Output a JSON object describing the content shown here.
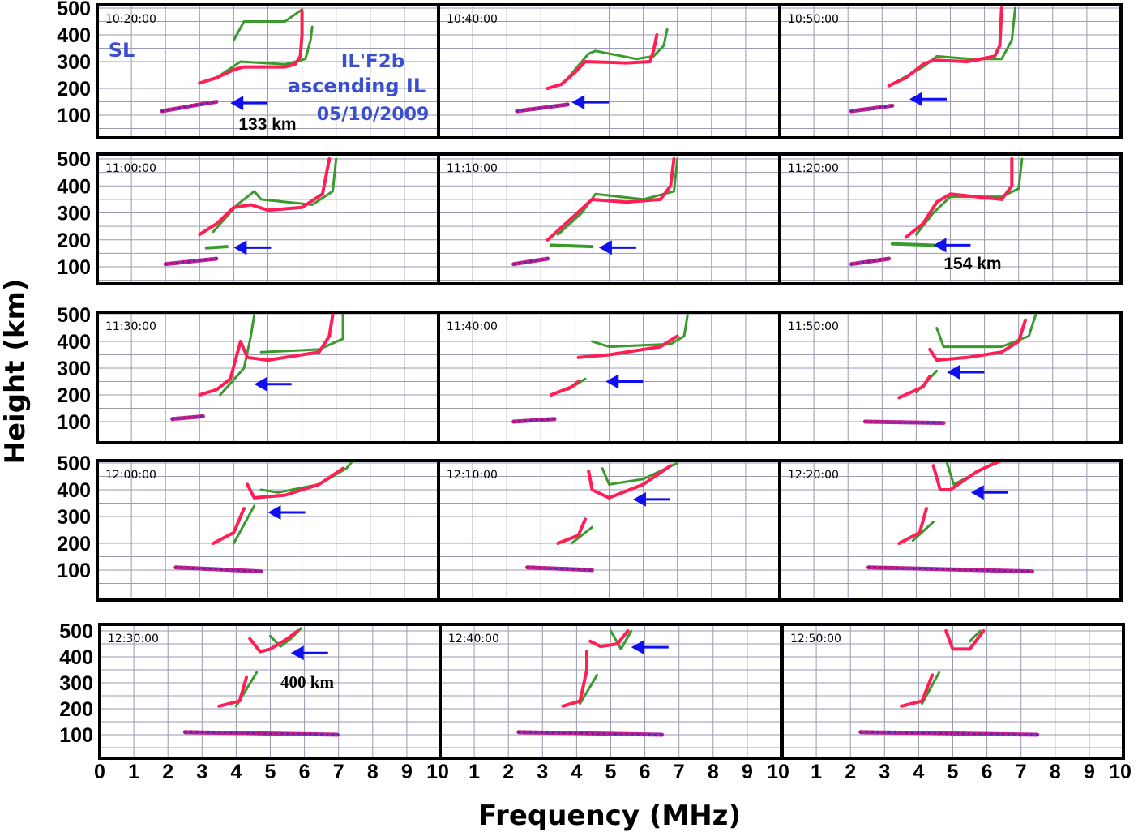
{
  "chart_data": {
    "type": "line",
    "xlabel": "Frequency (MHz)",
    "ylabel": "Height (km)",
    "xlim": [
      0,
      10
    ],
    "ylim": [
      15,
      515
    ],
    "grid": true,
    "x_ticks": [
      "0",
      "1",
      "2",
      "3",
      "4",
      "5",
      "6",
      "7",
      "8",
      "9",
      "10"
    ],
    "y_ticks": [
      "100",
      "200",
      "300",
      "400",
      "500"
    ],
    "colors": {
      "o_trace": "#ff1f55",
      "x_trace": "#3a9a2e",
      "es_trace": "#c0208a",
      "arrow": "#1010ee",
      "grid": "#9a9ab0"
    },
    "annotations": {
      "station": "SL",
      "feature": "IL'F2b",
      "description": "ascending IL",
      "date": "05/10/2009",
      "h1": "133 km",
      "h2": "154 km",
      "h3": "400 km"
    },
    "panels": [
      {
        "time": "10:20:00",
        "o": [
          [
            3.0,
            220
          ],
          [
            3.5,
            240
          ],
          [
            4.0,
            270
          ],
          [
            4.3,
            280
          ],
          [
            5.5,
            280
          ],
          [
            5.8,
            290
          ],
          [
            5.95,
            320
          ],
          [
            6.0,
            400
          ],
          [
            6.0,
            490
          ]
        ],
        "x": [
          [
            3.5,
            240
          ],
          [
            4.2,
            300
          ],
          [
            5.5,
            290
          ],
          [
            6.1,
            310
          ],
          [
            6.25,
            380
          ],
          [
            6.3,
            430
          ]
        ],
        "x2": [
          [
            4.0,
            380
          ],
          [
            4.3,
            450
          ],
          [
            5.5,
            450
          ],
          [
            6.0,
            495
          ]
        ],
        "es": [
          [
            1.9,
            115
          ],
          [
            3.0,
            140
          ],
          [
            3.5,
            150
          ]
        ],
        "arrow": [
          3.9,
          145
        ]
      },
      {
        "time": "10:40:00",
        "o": [
          [
            3.2,
            200
          ],
          [
            3.6,
            215
          ],
          [
            4.0,
            260
          ],
          [
            4.3,
            300
          ],
          [
            5.5,
            295
          ],
          [
            6.2,
            300
          ],
          [
            6.3,
            340
          ],
          [
            6.4,
            400
          ]
        ],
        "x": [
          [
            3.8,
            240
          ],
          [
            4.4,
            330
          ],
          [
            4.6,
            340
          ],
          [
            5.8,
            310
          ],
          [
            6.3,
            320
          ],
          [
            6.6,
            360
          ],
          [
            6.7,
            420
          ]
        ],
        "es": [
          [
            2.3,
            115
          ],
          [
            3.8,
            140
          ]
        ],
        "arrow": [
          3.9,
          148
        ]
      },
      {
        "time": "10:50:00",
        "o": [
          [
            3.2,
            210
          ],
          [
            3.7,
            240
          ],
          [
            4.2,
            290
          ],
          [
            4.5,
            305
          ],
          [
            5.5,
            300
          ],
          [
            6.3,
            320
          ],
          [
            6.45,
            360
          ],
          [
            6.5,
            500
          ]
        ],
        "x": [
          [
            3.5,
            230
          ],
          [
            4.2,
            280
          ],
          [
            4.6,
            320
          ],
          [
            5.6,
            310
          ],
          [
            6.5,
            310
          ],
          [
            6.8,
            380
          ],
          [
            6.9,
            500
          ]
        ],
        "es": [
          [
            2.1,
            115
          ],
          [
            3.3,
            135
          ]
        ],
        "arrow": [
          3.8,
          160
        ]
      },
      {
        "time": "11:00:00",
        "o": [
          [
            3.0,
            220
          ],
          [
            3.5,
            260
          ],
          [
            4.0,
            320
          ],
          [
            4.5,
            330
          ],
          [
            5.0,
            310
          ],
          [
            6.0,
            320
          ],
          [
            6.6,
            370
          ],
          [
            6.8,
            500
          ]
        ],
        "x": [
          [
            3.4,
            230
          ],
          [
            4.1,
            330
          ],
          [
            4.6,
            380
          ],
          [
            4.8,
            350
          ],
          [
            6.3,
            330
          ],
          [
            6.9,
            380
          ],
          [
            7.0,
            500
          ]
        ],
        "es": [
          [
            2.0,
            110
          ],
          [
            3.5,
            130
          ]
        ],
        "es2": [
          [
            3.2,
            170
          ],
          [
            3.8,
            175
          ]
        ],
        "arrow": [
          4.0,
          171
        ]
      },
      {
        "time": "11:10:00",
        "o": [
          [
            3.2,
            200
          ],
          [
            3.9,
            280
          ],
          [
            4.5,
            350
          ],
          [
            5.5,
            340
          ],
          [
            6.5,
            350
          ],
          [
            6.8,
            400
          ],
          [
            6.9,
            500
          ]
        ],
        "x": [
          [
            3.5,
            220
          ],
          [
            4.2,
            300
          ],
          [
            4.6,
            370
          ],
          [
            6.0,
            350
          ],
          [
            6.9,
            380
          ],
          [
            7.0,
            500
          ]
        ],
        "es": [
          [
            2.2,
            110
          ],
          [
            3.2,
            130
          ]
        ],
        "es2": [
          [
            3.3,
            180
          ],
          [
            4.5,
            175
          ]
        ],
        "arrow": [
          4.7,
          171
        ]
      },
      {
        "time": "11:20:00",
        "o": [
          [
            3.7,
            210
          ],
          [
            4.2,
            260
          ],
          [
            4.6,
            340
          ],
          [
            5.0,
            370
          ],
          [
            6.5,
            350
          ],
          [
            6.8,
            400
          ],
          [
            6.8,
            500
          ]
        ],
        "x": [
          [
            4.0,
            220
          ],
          [
            4.5,
            300
          ],
          [
            5.0,
            360
          ],
          [
            6.5,
            360
          ],
          [
            7.0,
            390
          ],
          [
            7.1,
            500
          ]
        ],
        "es": [
          [
            2.1,
            110
          ],
          [
            3.2,
            130
          ]
        ],
        "es2": [
          [
            3.3,
            185
          ],
          [
            4.5,
            180
          ]
        ],
        "arrow": [
          4.5,
          180
        ]
      },
      {
        "time": "11:30:00",
        "o": [
          [
            3.0,
            200
          ],
          [
            3.5,
            220
          ],
          [
            3.9,
            260
          ],
          [
            4.2,
            400
          ],
          [
            4.4,
            340
          ],
          [
            5.0,
            330
          ],
          [
            6.5,
            360
          ],
          [
            6.8,
            420
          ],
          [
            6.9,
            500
          ]
        ],
        "x": [
          [
            3.6,
            200
          ],
          [
            4.3,
            300
          ],
          [
            4.5,
            420
          ],
          [
            4.6,
            500
          ]
        ],
        "x2": [
          [
            4.8,
            360
          ],
          [
            6.5,
            370
          ],
          [
            7.2,
            410
          ],
          [
            7.2,
            500
          ]
        ],
        "es": [
          [
            2.2,
            110
          ],
          [
            3.1,
            120
          ]
        ],
        "arrow": [
          4.6,
          240
        ]
      },
      {
        "time": "11:40:00",
        "o": [
          [
            3.3,
            200
          ],
          [
            3.9,
            230
          ],
          [
            4.1,
            250
          ]
        ],
        "o2": [
          [
            4.1,
            340
          ],
          [
            5.0,
            350
          ],
          [
            6.5,
            380
          ],
          [
            7.0,
            420
          ]
        ],
        "x": [
          [
            3.8,
            220
          ],
          [
            4.3,
            260
          ]
        ],
        "x2": [
          [
            4.5,
            400
          ],
          [
            5.0,
            380
          ],
          [
            6.8,
            390
          ],
          [
            7.2,
            420
          ],
          [
            7.3,
            500
          ]
        ],
        "es": [
          [
            2.2,
            100
          ],
          [
            3.4,
            110
          ]
        ],
        "arrow": [
          4.9,
          250
        ]
      },
      {
        "time": "11:50:00",
        "o": [
          [
            3.5,
            190
          ],
          [
            4.2,
            230
          ],
          [
            4.4,
            270
          ]
        ],
        "o2": [
          [
            4.4,
            370
          ],
          [
            4.6,
            330
          ],
          [
            5.5,
            340
          ],
          [
            6.5,
            360
          ],
          [
            7.0,
            400
          ],
          [
            7.2,
            480
          ]
        ],
        "x": [
          [
            4.0,
            210
          ],
          [
            4.6,
            290
          ]
        ],
        "x2": [
          [
            4.6,
            450
          ],
          [
            4.8,
            380
          ],
          [
            6.5,
            380
          ],
          [
            7.3,
            420
          ],
          [
            7.5,
            500
          ]
        ],
        "es": [
          [
            2.5,
            100
          ],
          [
            4.8,
            95
          ]
        ],
        "arrow": [
          4.9,
          285
        ]
      },
      {
        "time": "12:00:00",
        "o": [
          [
            3.4,
            200
          ],
          [
            4.0,
            240
          ],
          [
            4.3,
            330
          ]
        ],
        "o2": [
          [
            4.4,
            420
          ],
          [
            4.6,
            370
          ],
          [
            5.5,
            380
          ],
          [
            6.5,
            420
          ],
          [
            7.2,
            480
          ]
        ],
        "x": [
          [
            4.0,
            200
          ],
          [
            4.6,
            340
          ]
        ],
        "x2": [
          [
            4.8,
            400
          ],
          [
            5.3,
            390
          ],
          [
            6.5,
            420
          ],
          [
            7.3,
            480
          ],
          [
            7.5,
            510
          ]
        ],
        "es": [
          [
            2.3,
            110
          ],
          [
            4.8,
            95
          ]
        ],
        "arrow": [
          5.0,
          315
        ]
      },
      {
        "time": "12:10:00",
        "o": [
          [
            3.5,
            200
          ],
          [
            4.1,
            230
          ],
          [
            4.3,
            290
          ]
        ],
        "o2": [
          [
            4.4,
            470
          ],
          [
            4.5,
            400
          ],
          [
            5.0,
            370
          ],
          [
            6.0,
            420
          ],
          [
            6.8,
            490
          ]
        ],
        "x": [
          [
            3.9,
            200
          ],
          [
            4.5,
            260
          ]
        ],
        "x2": [
          [
            4.8,
            480
          ],
          [
            5.0,
            420
          ],
          [
            6.0,
            440
          ],
          [
            7.0,
            500
          ]
        ],
        "es": [
          [
            2.6,
            110
          ],
          [
            4.5,
            100
          ]
        ],
        "arrow": [
          5.7,
          364
        ]
      },
      {
        "time": "12:20:00",
        "o": [
          [
            3.5,
            200
          ],
          [
            4.1,
            240
          ],
          [
            4.3,
            330
          ]
        ],
        "o2": [
          [
            4.5,
            490
          ],
          [
            4.7,
            400
          ],
          [
            5.0,
            400
          ],
          [
            5.8,
            470
          ],
          [
            6.5,
            510
          ]
        ],
        "x": [
          [
            3.9,
            210
          ],
          [
            4.5,
            280
          ]
        ],
        "x2": [
          [
            4.9,
            500
          ],
          [
            5.1,
            420
          ],
          [
            6.0,
            480
          ],
          [
            6.4,
            510
          ]
        ],
        "es": [
          [
            2.6,
            110
          ],
          [
            7.4,
            95
          ]
        ],
        "arrow": [
          5.6,
          390
        ]
      },
      {
        "time": "12:30:00",
        "o": [
          [
            3.5,
            210
          ],
          [
            4.1,
            230
          ],
          [
            4.3,
            320
          ]
        ],
        "o2": [
          [
            4.4,
            470
          ],
          [
            4.7,
            420
          ],
          [
            5.0,
            430
          ],
          [
            5.5,
            470
          ],
          [
            5.8,
            500
          ]
        ],
        "x": [
          [
            4.0,
            210
          ],
          [
            4.6,
            340
          ]
        ],
        "x2": [
          [
            5.0,
            480
          ],
          [
            5.3,
            440
          ],
          [
            5.6,
            470
          ],
          [
            5.9,
            510
          ]
        ],
        "es": [
          [
            2.5,
            110
          ],
          [
            7.0,
            100
          ]
        ],
        "arrow": [
          5.6,
          415
        ]
      },
      {
        "time": "12:40:00",
        "o": [
          [
            3.6,
            210
          ],
          [
            4.1,
            230
          ],
          [
            4.3,
            350
          ],
          [
            4.3,
            420
          ]
        ],
        "o2": [
          [
            4.4,
            460
          ],
          [
            4.7,
            440
          ],
          [
            5.2,
            450
          ],
          [
            5.5,
            500
          ]
        ],
        "x": [
          [
            4.1,
            220
          ],
          [
            4.6,
            330
          ]
        ],
        "x2": [
          [
            5.0,
            500
          ],
          [
            5.3,
            430
          ],
          [
            5.6,
            500
          ]
        ],
        "es": [
          [
            2.3,
            110
          ],
          [
            6.5,
            100
          ]
        ],
        "arrow": [
          5.6,
          437
        ]
      },
      {
        "time": "12:50:00",
        "o": [
          [
            3.5,
            210
          ],
          [
            4.1,
            230
          ],
          [
            4.4,
            330
          ]
        ],
        "o2": [
          [
            4.8,
            500
          ],
          [
            5.0,
            430
          ],
          [
            5.5,
            430
          ],
          [
            5.9,
            500
          ]
        ],
        "x": [
          [
            4.1,
            220
          ],
          [
            4.6,
            340
          ]
        ],
        "x2": [
          [
            5.5,
            460
          ],
          [
            5.8,
            500
          ]
        ],
        "es": [
          [
            2.3,
            110
          ],
          [
            7.5,
            100
          ]
        ]
      }
    ]
  }
}
